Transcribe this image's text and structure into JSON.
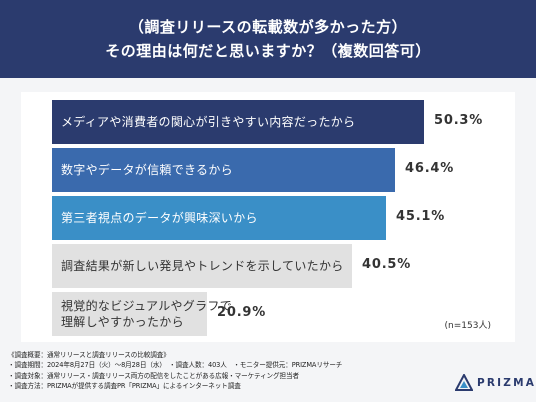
{
  "header": {
    "line1": "（調査リリースの転載数が多かった方）",
    "line2": "その理由は何だと思いますか？（複数回答可）"
  },
  "chart_data": {
    "type": "bar",
    "orientation": "horizontal",
    "categories": [
      "メディアや消費者の関心が引きやすい内容だったから",
      "数字やデータが信頼できるから",
      "第三者視点のデータが興味深いから",
      "調査結果が新しい発見やトレンドを示していたから",
      "視覚的なビジュアルやグラフで理解しやすかったから"
    ],
    "category_lines": [
      [
        "メディアや消費者の関心が引きやすい内容だったから"
      ],
      [
        "数字やデータが信頼できるから"
      ],
      [
        "第三者視点のデータが興味深いから"
      ],
      [
        "調査結果が新しい発見やトレンドを示していたから"
      ],
      [
        "視覚的なビジュアルやグラフで",
        "理解しやすかったから"
      ]
    ],
    "values": [
      50.3,
      46.4,
      45.1,
      40.5,
      20.9
    ],
    "value_labels": [
      "50.3%",
      "46.4%",
      "45.1%",
      "40.5%",
      "20.9%"
    ],
    "bar_colors": [
      "#2b3b6e",
      "#3a6aad",
      "#3a8fc7",
      "#e1e1e1",
      "#e1e1e1"
    ],
    "label_colors": [
      "#ffffff",
      "#ffffff",
      "#ffffff",
      "#333333",
      "#333333"
    ],
    "sample_note": "(n=153人)"
  },
  "footer": {
    "lines": [
      "《調査概要：通常リリースと調査リリースの比較調査》",
      "・調査期間：2024年8月27日（火）〜8月28日（水）　・調査人数：403人　・モニター提供元：PRIZMAリサーチ",
      "・調査対象：通常リリース・調査リリース両方の配信をしたことがある広報・マーケティング担当者",
      "・調査方法：PRIZMAが提供する調査PR「PRIZMA」によるインターネット調査"
    ]
  },
  "logo": {
    "text": "PRIZMA",
    "icon": "prizma-triangle-icon",
    "color": "#2b3b6e"
  }
}
